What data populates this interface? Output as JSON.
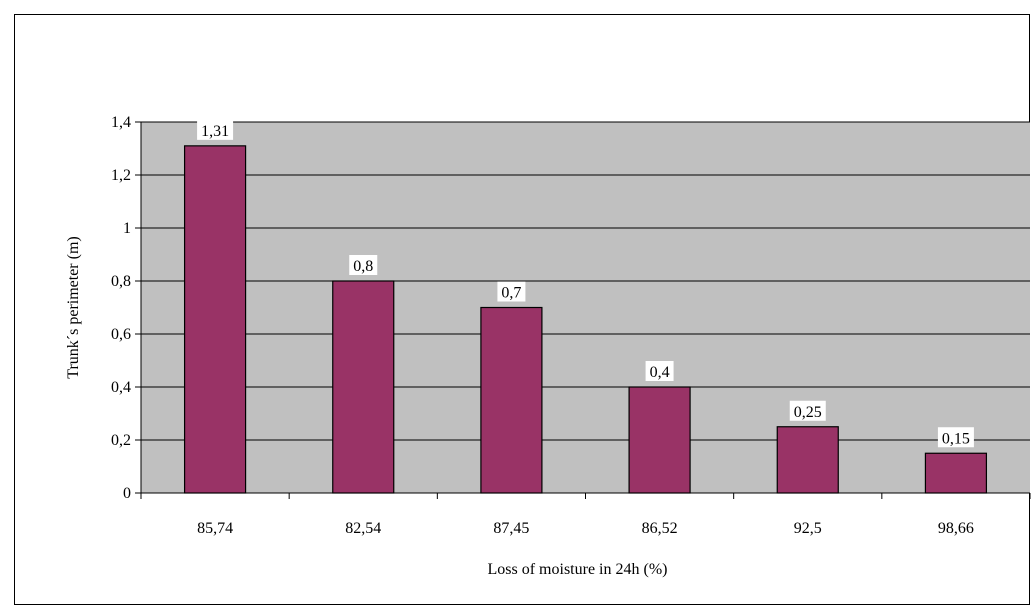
{
  "chart_data": {
    "type": "bar",
    "categories": [
      "85,74",
      "82,54",
      "87,45",
      "86,52",
      "92,5",
      "98,66"
    ],
    "values": [
      1.31,
      0.8,
      0.7,
      0.4,
      0.25,
      0.15
    ],
    "data_labels": [
      "1,31",
      "0,8",
      "0,7",
      "0,4",
      "0,25",
      "0,15"
    ],
    "y_ticks": [
      0,
      0.2,
      0.4,
      0.6,
      0.8,
      1,
      1.2,
      1.4
    ],
    "y_tick_labels": [
      "0",
      "0,2",
      "0,4",
      "0,6",
      "0,8",
      "1",
      "1,2",
      "1,4"
    ],
    "xlabel": "Loss of moisture in 24h (%)",
    "ylabel": "Trunk´s perimeter (m)",
    "ylim": [
      0,
      1.4
    ],
    "grid": true,
    "colors": {
      "bar": "#993366",
      "plot_background": "#c0c0c0",
      "gridline": "#000000"
    }
  }
}
